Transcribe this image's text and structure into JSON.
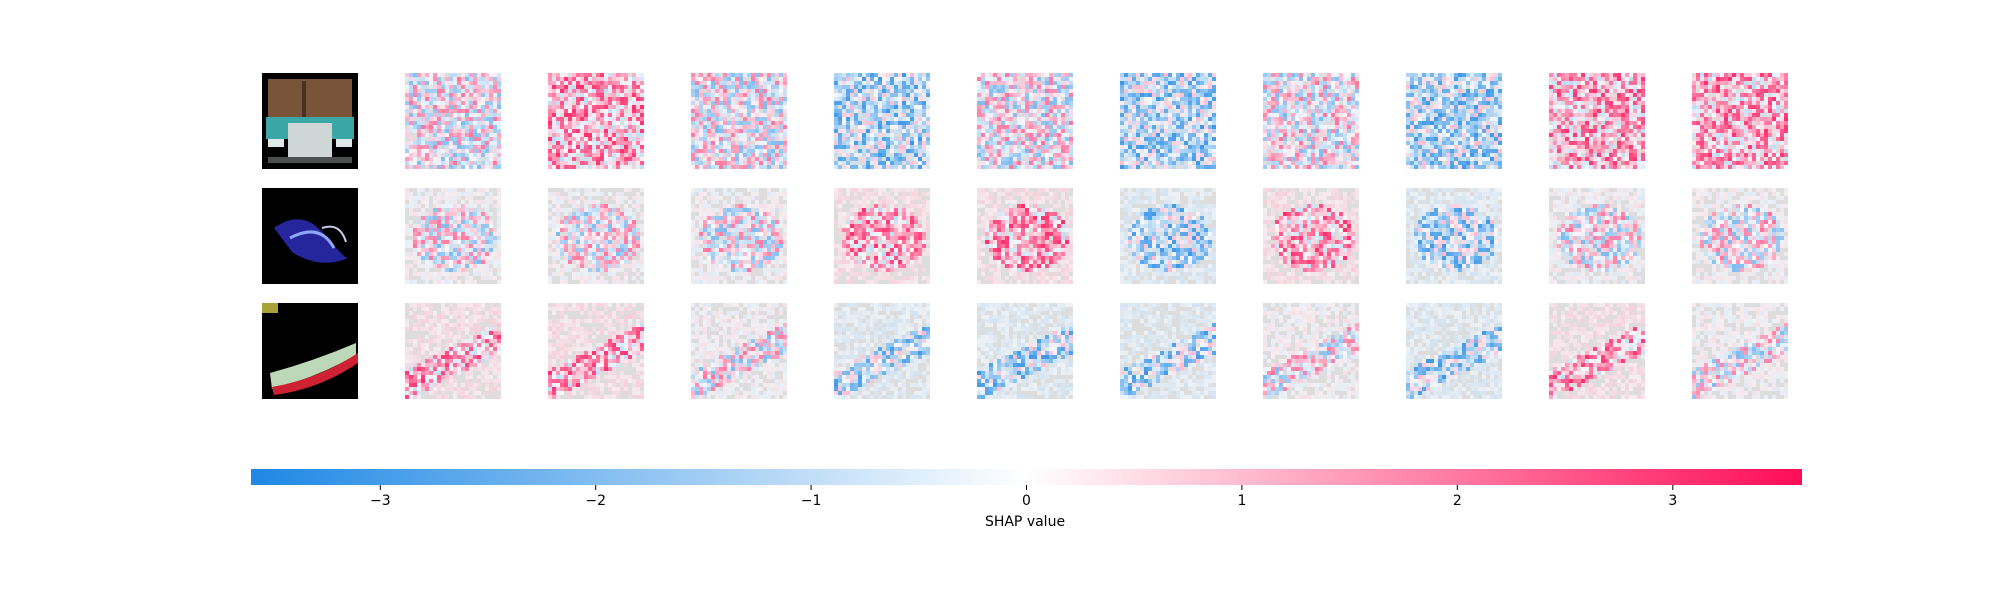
{
  "chart_data": {
    "type": "heatmap",
    "title": "",
    "grid": false,
    "rows": [
      {
        "input_image": "truck-front",
        "attribution_dominant_sign": [
          "mixed",
          "positive",
          "mixed",
          "negative",
          "mixed",
          "negative",
          "mixed",
          "negative",
          "positive",
          "positive"
        ]
      },
      {
        "input_image": "blue-shape-on-black",
        "attribution_dominant_sign": [
          "mixed",
          "mixed",
          "mixed",
          "positive",
          "positive",
          "negative",
          "positive",
          "negative",
          "mixed",
          "mixed"
        ]
      },
      {
        "input_image": "shoe-on-black",
        "attribution_dominant_sign": [
          "positive",
          "positive",
          "mixed",
          "negative",
          "negative",
          "negative",
          "mixed",
          "negative",
          "positive",
          "mixed"
        ]
      }
    ],
    "colorbar": {
      "label": "SHAP value",
      "range": [
        -3.6,
        3.6
      ],
      "ticks": [
        -3,
        -2,
        -1,
        0,
        1,
        2,
        3
      ],
      "tick_labels": [
        "−3",
        "−2",
        "−1",
        "0",
        "1",
        "2",
        "3"
      ],
      "color_negative": "#1E88E5",
      "color_zero": "#FFFFFF",
      "color_positive": "#FF0D57"
    }
  }
}
